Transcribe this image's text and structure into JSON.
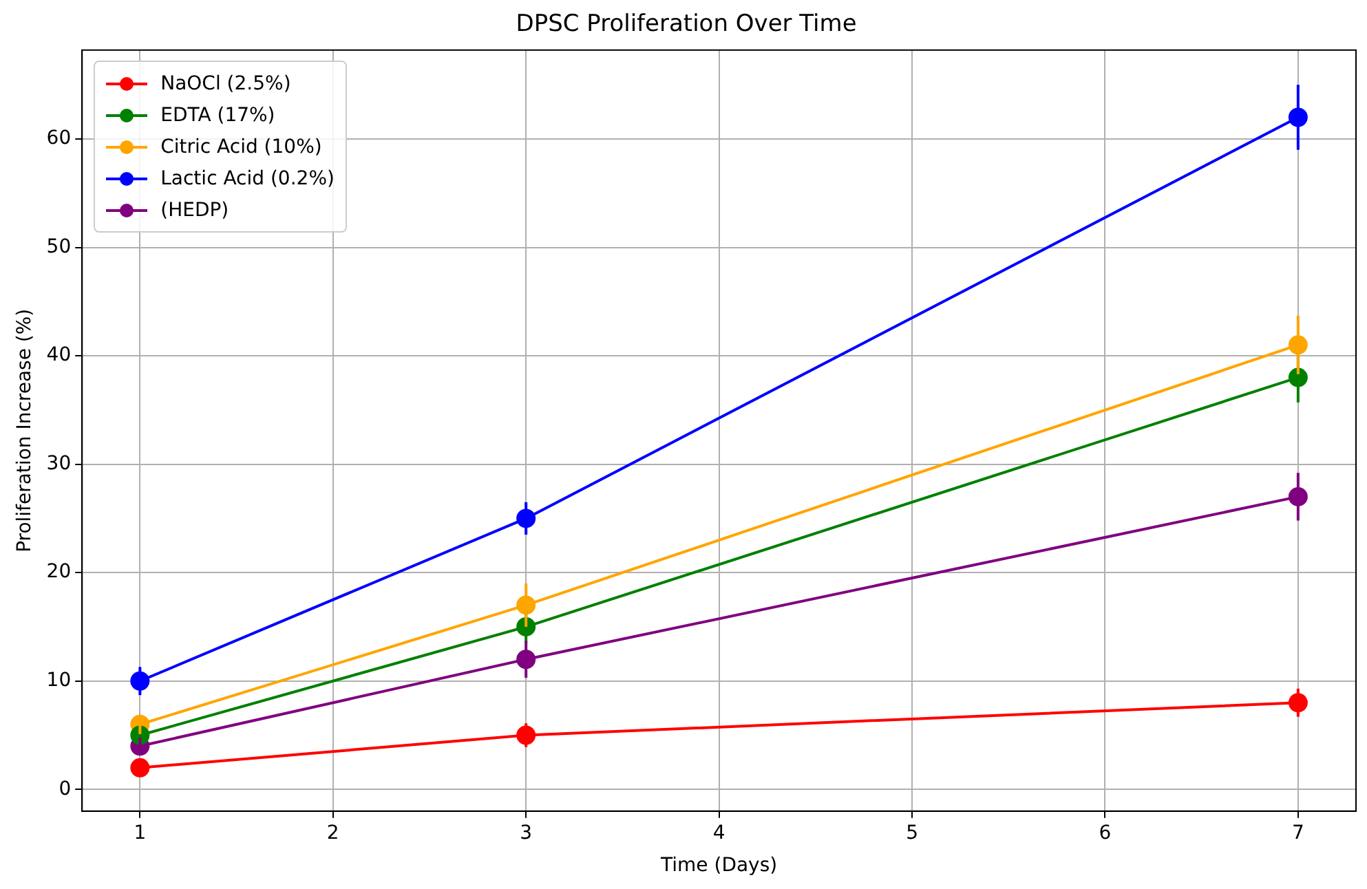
{
  "chart_data": {
    "type": "line",
    "title": "DPSC Proliferation Over Time",
    "xlabel": "Time (Days)",
    "ylabel": "Proliferation Increase (%)",
    "x": [
      1,
      3,
      7
    ],
    "series": [
      {
        "name": "NaOCl (2.5%)",
        "color": "#ff0000",
        "values": [
          2,
          5,
          8
        ],
        "errors": [
          0.6,
          1.1,
          1.3
        ]
      },
      {
        "name": "EDTA (17%)",
        "color": "#008000",
        "values": [
          5,
          15,
          38
        ],
        "errors": [
          0.8,
          1.5,
          2.3
        ]
      },
      {
        "name": "Citric Acid (10%)",
        "color": "#ffa500",
        "values": [
          6,
          17,
          41
        ],
        "errors": [
          0.9,
          2,
          2.7
        ]
      },
      {
        "name": "Lactic Acid (0.2%)",
        "color": "#0000ff",
        "values": [
          10,
          25,
          62
        ],
        "errors": [
          1.3,
          1.5,
          3
        ]
      },
      {
        "name": "(HEDP)",
        "color": "#800080",
        "values": [
          4,
          12,
          27
        ],
        "errors": [
          0.8,
          1.7,
          2.2
        ]
      }
    ],
    "xlim": [
      0.7,
      7.3
    ],
    "xticks": [
      1,
      2,
      3,
      4,
      5,
      6,
      7
    ],
    "ylim": [
      -2,
      68.2
    ],
    "yticks": [
      0,
      10,
      20,
      30,
      40,
      50,
      60
    ],
    "grid": true,
    "legend": "top left",
    "marker": "circle",
    "line_style": "solid"
  }
}
